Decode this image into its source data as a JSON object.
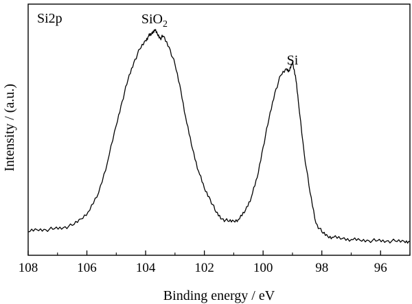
{
  "chart_data": {
    "type": "line",
    "title": "",
    "xlabel": "Binding energy / eV",
    "ylabel": "Intensity / (a.u.)",
    "x_reversed": true,
    "xlim": [
      108,
      95
    ],
    "ylim": [
      0,
      1
    ],
    "y_ticks_shown": false,
    "grid": false,
    "x_ticks": [
      108,
      106,
      104,
      102,
      100,
      98,
      96
    ],
    "x_tick_labels": [
      "108",
      "106",
      "104",
      "102",
      "100",
      "98",
      "96"
    ],
    "annotations": {
      "panel_label": "Si2p",
      "peak1_main": "SiO",
      "peak1_sub": "2",
      "peak2": "Si"
    },
    "peak1_x": 103.7,
    "peak2_x": 99.0,
    "series": [
      {
        "color": "#000000",
        "x": [
          108.0,
          107.7,
          107.4,
          107.1,
          106.8,
          106.5,
          106.2,
          105.9,
          105.6,
          105.3,
          105.0,
          104.8,
          104.6,
          104.4,
          104.2,
          104.0,
          103.9,
          103.8,
          103.7,
          103.6,
          103.5,
          103.4,
          103.2,
          103.0,
          102.8,
          102.6,
          102.4,
          102.2,
          102.0,
          101.8,
          101.6,
          101.4,
          101.2,
          101.0,
          100.8,
          100.6,
          100.4,
          100.2,
          100.0,
          99.8,
          99.6,
          99.4,
          99.2,
          99.1,
          99.0,
          98.9,
          98.8,
          98.6,
          98.4,
          98.2,
          98.0,
          97.8,
          97.6,
          97.3,
          97.0,
          96.7,
          96.4,
          96.1,
          95.8,
          95.5,
          95.2,
          95.0
        ],
        "y": [
          0.06,
          0.07,
          0.07,
          0.075,
          0.08,
          0.09,
          0.12,
          0.16,
          0.24,
          0.38,
          0.55,
          0.66,
          0.76,
          0.84,
          0.9,
          0.94,
          0.96,
          0.97,
          0.99,
          0.97,
          0.95,
          0.96,
          0.91,
          0.83,
          0.71,
          0.56,
          0.44,
          0.34,
          0.26,
          0.21,
          0.15,
          0.12,
          0.11,
          0.11,
          0.12,
          0.16,
          0.22,
          0.31,
          0.45,
          0.58,
          0.7,
          0.78,
          0.81,
          0.8,
          0.84,
          0.78,
          0.66,
          0.42,
          0.24,
          0.1,
          0.06,
          0.04,
          0.035,
          0.03,
          0.025,
          0.022,
          0.02,
          0.02,
          0.018,
          0.018,
          0.017,
          0.017
        ]
      }
    ]
  }
}
